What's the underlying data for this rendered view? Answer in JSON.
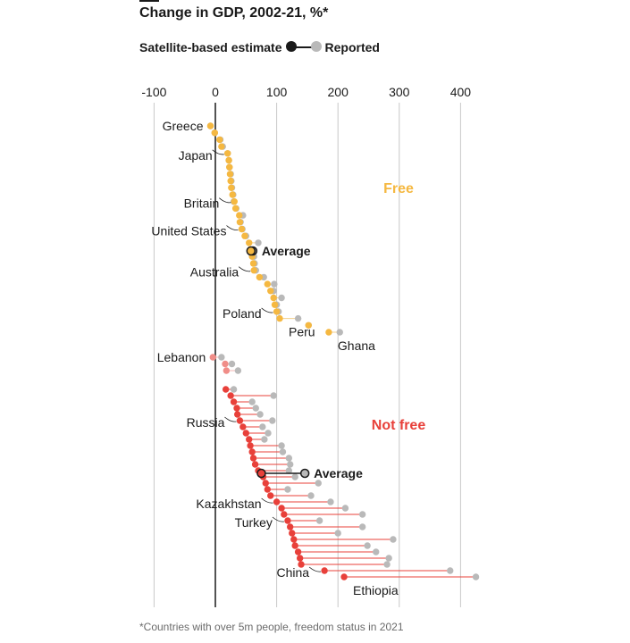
{
  "title": "Change in GDP, 2002-21, %*",
  "legend": {
    "estimate_label": "Satellite-based estimate",
    "reported_label": "Reported"
  },
  "footnote": "*Countries with over 5m people, freedom status in 2021",
  "colors": {
    "free": "#f5b841",
    "not_free": "#e8403a",
    "reported": "#b9b9b9",
    "lebanon": "#f08d88",
    "text": "#1a1a1a"
  },
  "chart_data": {
    "type": "dumbbell",
    "title": "Change in GDP, 2002-21, %*",
    "xlim": [
      -100,
      400
    ],
    "xticks": [
      -100,
      0,
      100,
      200,
      300,
      400
    ],
    "xtick_labels": [
      "-100",
      "0",
      "100",
      "200",
      "300",
      "400"
    ],
    "panels": [
      {
        "name": "Free",
        "label": "Free",
        "average": {
          "label": "Average",
          "satellite": 58,
          "reported": 61
        },
        "rows": [
          {
            "country": "Greece",
            "satellite": -8,
            "reported": -8
          },
          {
            "country": "",
            "satellite": -1,
            "reported": -1
          },
          {
            "country": "",
            "satellite": 7,
            "reported": 8
          },
          {
            "country": "",
            "satellite": 10,
            "reported": 12
          },
          {
            "country": "Japan",
            "satellite": 20,
            "reported": 20
          },
          {
            "country": "",
            "satellite": 22,
            "reported": 22
          },
          {
            "country": "",
            "satellite": 23,
            "reported": 23
          },
          {
            "country": "",
            "satellite": 24,
            "reported": 25
          },
          {
            "country": "",
            "satellite": 25,
            "reported": 26
          },
          {
            "country": "",
            "satellite": 26,
            "reported": 27
          },
          {
            "country": "",
            "satellite": 28,
            "reported": 29
          },
          {
            "country": "Britain",
            "satellite": 31,
            "reported": 30
          },
          {
            "country": "",
            "satellite": 33,
            "reported": 34
          },
          {
            "country": "",
            "satellite": 39,
            "reported": 45
          },
          {
            "country": "",
            "satellite": 40,
            "reported": 41
          },
          {
            "country": "United States",
            "satellite": 43,
            "reported": 44
          },
          {
            "country": "",
            "satellite": 48,
            "reported": 50
          },
          {
            "country": "",
            "satellite": 55,
            "reported": 70
          },
          {
            "country": "",
            "satellite": 57,
            "reported": 62
          },
          {
            "country": "",
            "satellite": 60,
            "reported": 63
          },
          {
            "country": "",
            "satellite": 62,
            "reported": 64
          },
          {
            "country": "Australia",
            "satellite": 63,
            "reported": 66
          },
          {
            "country": "",
            "satellite": 72,
            "reported": 79
          },
          {
            "country": "",
            "satellite": 85,
            "reported": 96
          },
          {
            "country": "",
            "satellite": 90,
            "reported": 95
          },
          {
            "country": "",
            "satellite": 95,
            "reported": 108
          },
          {
            "country": "",
            "satellite": 97,
            "reported": 100
          },
          {
            "country": "Poland",
            "satellite": 100,
            "reported": 103
          },
          {
            "country": "Peru",
            "satellite": 105,
            "reported": 135
          },
          {
            "country": "",
            "satellite": 152,
            "reported": 152
          },
          {
            "country": "Ghana",
            "satellite": 185,
            "reported": 203
          }
        ],
        "extra_rows": [
          {
            "country": "Lebanon",
            "satellite": -4,
            "reported": 10
          },
          {
            "country": "",
            "satellite": 16,
            "reported": 27
          },
          {
            "country": "",
            "satellite": 18,
            "reported": 37
          }
        ]
      },
      {
        "name": "Not free",
        "label": "Not free",
        "average": {
          "label": "Average",
          "satellite": 75,
          "reported": 146
        },
        "rows": [
          {
            "country": "",
            "satellite": 17,
            "reported": 30
          },
          {
            "country": "",
            "satellite": 25,
            "reported": 95
          },
          {
            "country": "",
            "satellite": 30,
            "reported": 60
          },
          {
            "country": "",
            "satellite": 35,
            "reported": 66
          },
          {
            "country": "",
            "satellite": 36,
            "reported": 73
          },
          {
            "country": "Russia",
            "satellite": 40,
            "reported": 93
          },
          {
            "country": "",
            "satellite": 45,
            "reported": 77
          },
          {
            "country": "",
            "satellite": 50,
            "reported": 86
          },
          {
            "country": "",
            "satellite": 55,
            "reported": 80
          },
          {
            "country": "",
            "satellite": 57,
            "reported": 108
          },
          {
            "country": "",
            "satellite": 60,
            "reported": 110
          },
          {
            "country": "",
            "satellite": 62,
            "reported": 120
          },
          {
            "country": "",
            "satellite": 65,
            "reported": 122
          },
          {
            "country": "",
            "satellite": 70,
            "reported": 120
          },
          {
            "country": "",
            "satellite": 78,
            "reported": 130
          },
          {
            "country": "",
            "satellite": 82,
            "reported": 168
          },
          {
            "country": "",
            "satellite": 85,
            "reported": 118
          },
          {
            "country": "",
            "satellite": 90,
            "reported": 156
          },
          {
            "country": "Kazakhstan",
            "satellite": 100,
            "reported": 188
          },
          {
            "country": "",
            "satellite": 108,
            "reported": 212
          },
          {
            "country": "",
            "satellite": 112,
            "reported": 240
          },
          {
            "country": "Turkey",
            "satellite": 118,
            "reported": 170
          },
          {
            "country": "",
            "satellite": 122,
            "reported": 240
          },
          {
            "country": "",
            "satellite": 125,
            "reported": 200
          },
          {
            "country": "",
            "satellite": 128,
            "reported": 290
          },
          {
            "country": "",
            "satellite": 130,
            "reported": 248
          },
          {
            "country": "",
            "satellite": 135,
            "reported": 262
          },
          {
            "country": "",
            "satellite": 138,
            "reported": 283
          },
          {
            "country": "",
            "satellite": 140,
            "reported": 280
          },
          {
            "country": "China",
            "satellite": 178,
            "reported": 383
          },
          {
            "country": "Ethiopia",
            "satellite": 210,
            "reported": 425
          }
        ]
      }
    ]
  }
}
